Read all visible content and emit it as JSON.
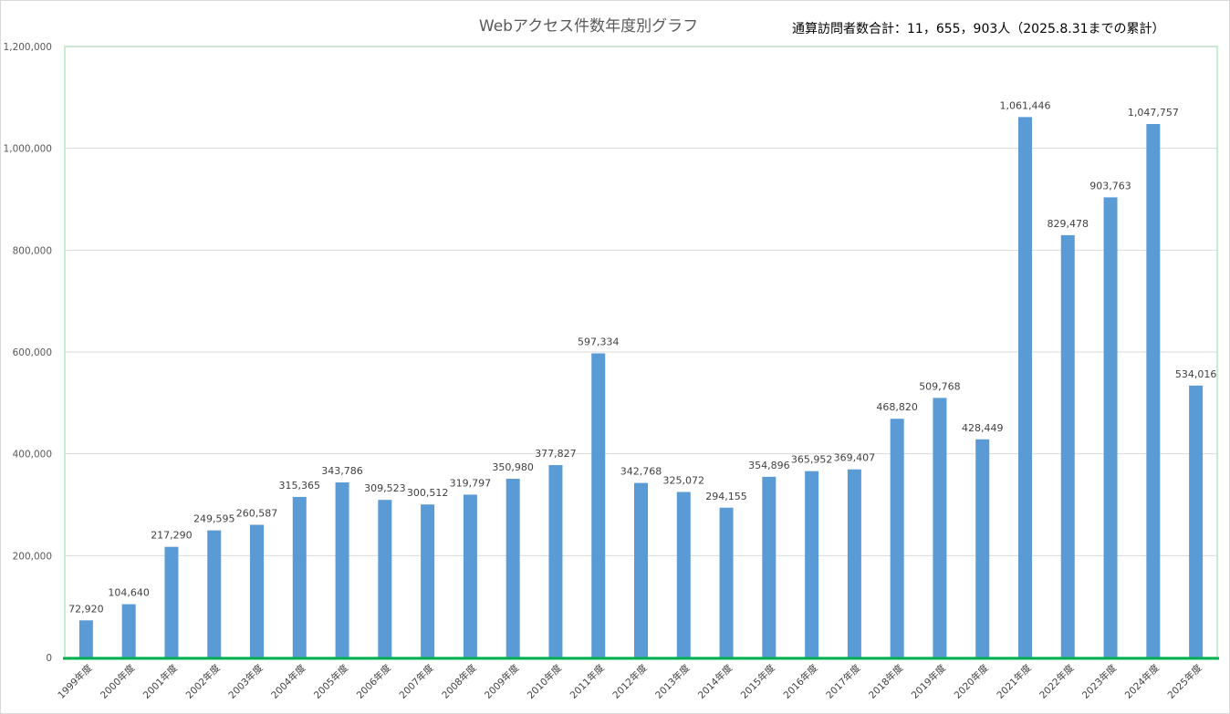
{
  "chart_data": {
    "type": "bar",
    "title": "Webアクセス件数年度別グラフ",
    "annotation": "通算訪問者数合計：11，655，903人（2025.8.31までの累計）",
    "categories": [
      "1999年度",
      "2000年度",
      "2001年度",
      "2002年度",
      "2003年度",
      "2004年度",
      "2005年度",
      "2006年度",
      "2007年度",
      "2008年度",
      "2009年度",
      "2010年度",
      "2011年度",
      "2012年度",
      "2013年度",
      "2014年度",
      "2015年度",
      "2016年度",
      "2017年度",
      "2018年度",
      "2019年度",
      "2020年度",
      "2021年度",
      "2022年度",
      "2023年度",
      "2024年度",
      "2025年度"
    ],
    "values": [
      72920,
      104640,
      217290,
      249595,
      260587,
      315365,
      343786,
      309523,
      300512,
      319797,
      350980,
      377827,
      597334,
      342768,
      325072,
      294155,
      354896,
      365952,
      369407,
      468820,
      509768,
      428449,
      1061446,
      829478,
      903763,
      1047757,
      534016
    ],
    "value_labels": [
      "72,920",
      "104,640",
      "217,290",
      "249,595",
      "260,587",
      "315,365",
      "343,786",
      "309,523",
      "300,512",
      "319,797",
      "350,980",
      "377,827",
      "597,334",
      "342,768",
      "325,072",
      "294,155",
      "354,896",
      "365,952",
      "369,407",
      "468,820",
      "509,768",
      "428,449",
      "1,061,446",
      "829,478",
      "903,763",
      "1,047,757",
      "534,016"
    ],
    "ylim": [
      0,
      1200000
    ],
    "yticks": [
      0,
      200000,
      400000,
      600000,
      800000,
      1000000,
      1200000
    ],
    "ytick_labels": [
      "0",
      "200,000",
      "400,000",
      "600,000",
      "800,000",
      "1,000,000",
      "1,200,000"
    ],
    "xlabel": "",
    "ylabel": "",
    "grid": true,
    "legend": "none",
    "colors": {
      "bar": "#5b9bd5",
      "grid": "#d9d9d9",
      "axis_line": "#00b050",
      "plot_border": "#c6efce"
    }
  }
}
